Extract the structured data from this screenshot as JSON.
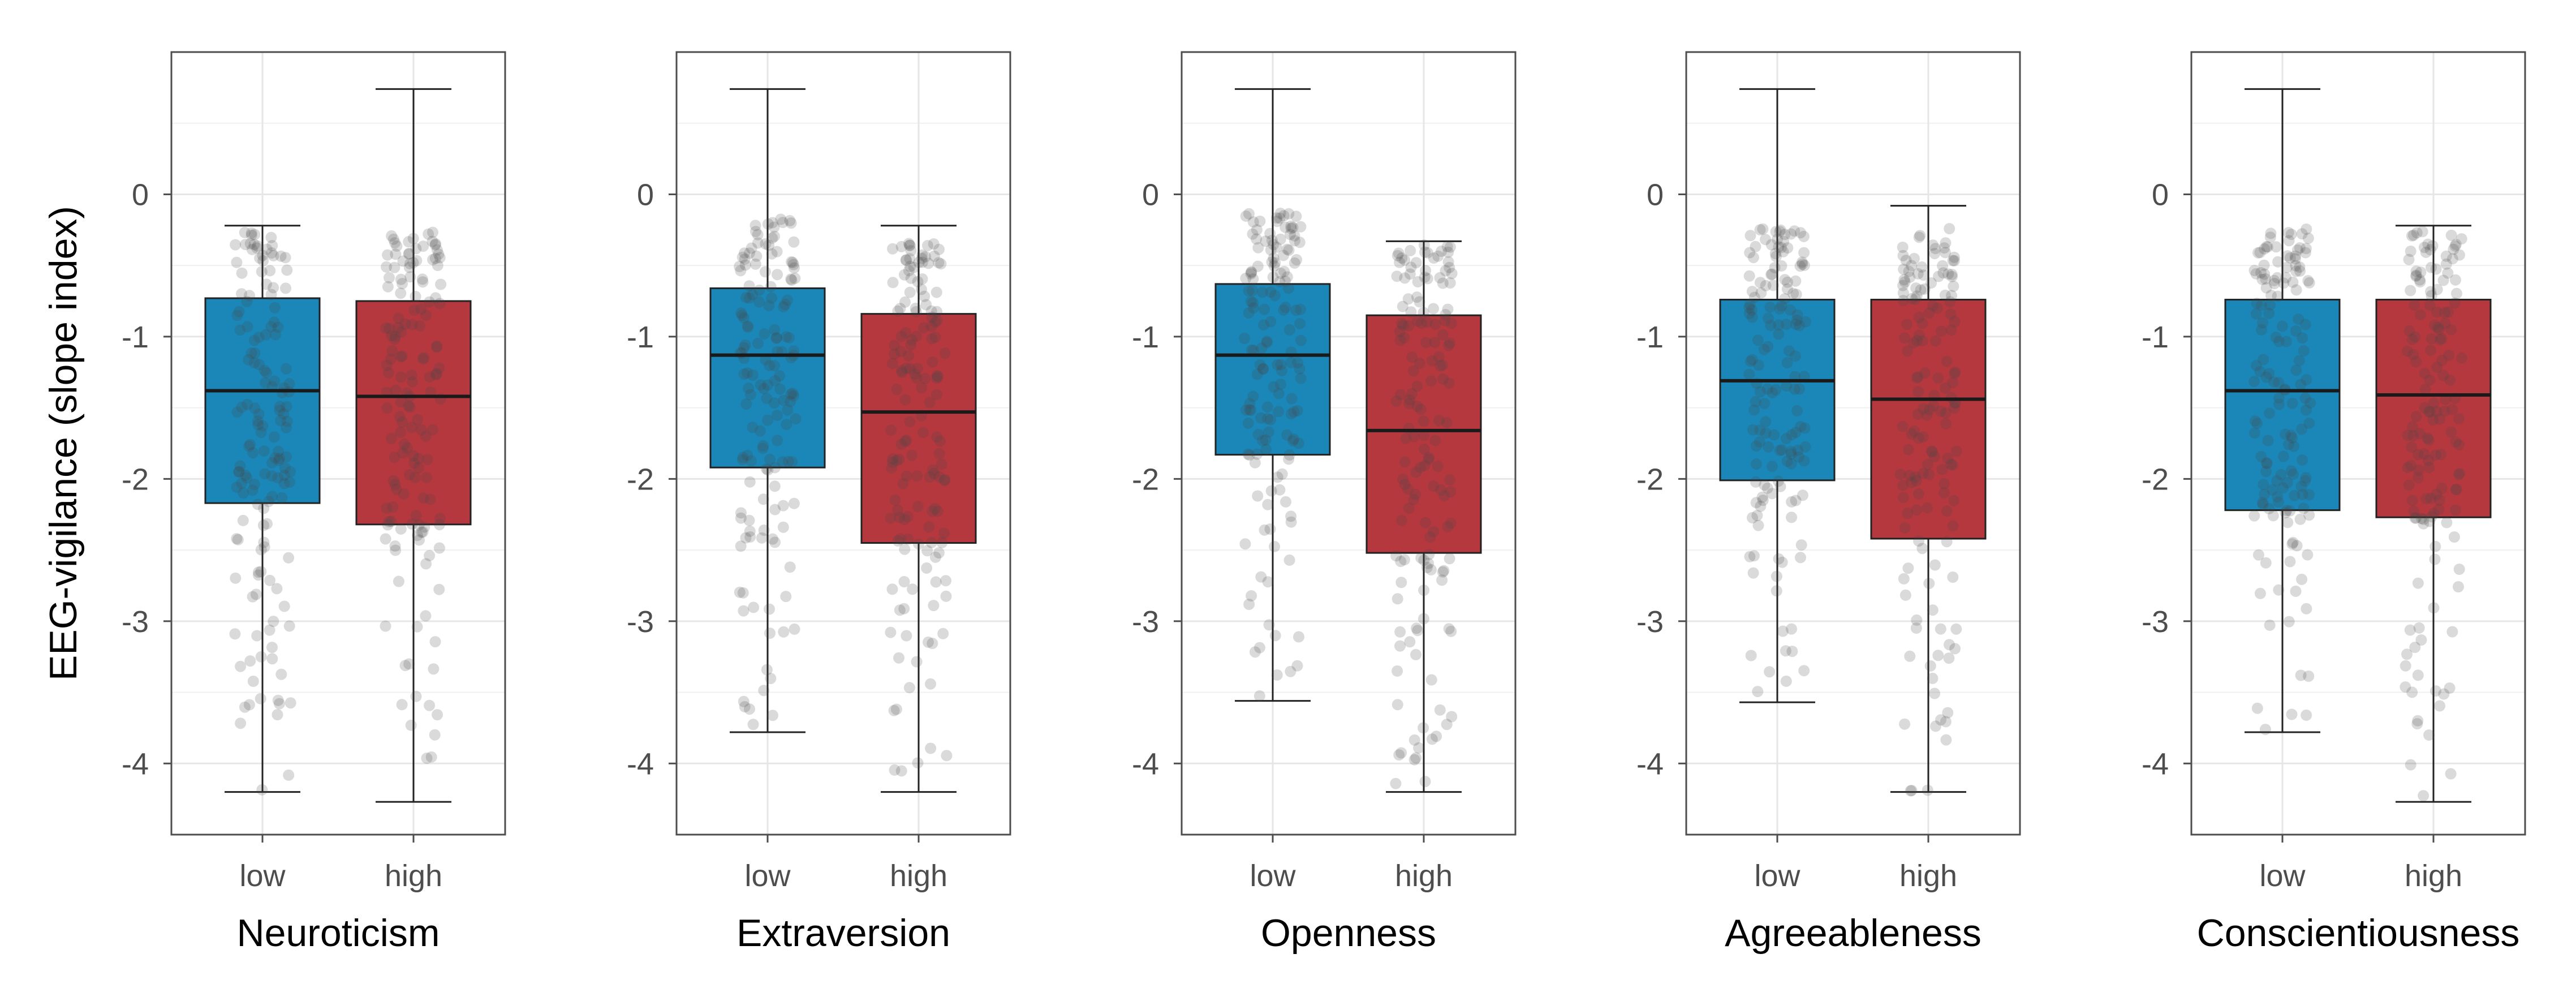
{
  "figure": {
    "y_axis_title": "EEG-vigilance (slope index)",
    "y_ticks": [
      0,
      -1,
      -2,
      -3,
      -4
    ],
    "ylim": [
      -4.5,
      1.0
    ],
    "whisker_range": [
      -4.27,
      0.74
    ],
    "colors": {
      "low": "#1b87b8",
      "high": "#b6383f",
      "box_outline": "#222222",
      "points": "#444444",
      "panel_border": "#4d4d4d",
      "grid": "#e6e6e6"
    }
  },
  "chart_data": [
    {
      "type": "boxplot",
      "xlabel": "Neuroticism",
      "ylabel": "EEG-vigilance (slope index)",
      "categories": [
        "low",
        "high"
      ],
      "ylim": [
        -4.5,
        1.0
      ],
      "series": [
        {
          "name": "low",
          "q1": -2.17,
          "median": -1.38,
          "q3": -0.73,
          "whisker_low": -4.2,
          "whisker_high": -0.22
        },
        {
          "name": "high",
          "q1": -2.32,
          "median": -1.42,
          "q3": -0.75,
          "whisker_low": -4.27,
          "whisker_high": 0.74
        }
      ]
    },
    {
      "type": "boxplot",
      "xlabel": "Extraversion",
      "ylabel": "EEG-vigilance (slope index)",
      "categories": [
        "low",
        "high"
      ],
      "ylim": [
        -4.5,
        1.0
      ],
      "series": [
        {
          "name": "low",
          "q1": -1.92,
          "median": -1.13,
          "q3": -0.66,
          "whisker_low": -3.78,
          "whisker_high": 0.74
        },
        {
          "name": "high",
          "q1": -2.45,
          "median": -1.53,
          "q3": -0.84,
          "whisker_low": -4.2,
          "whisker_high": -0.22
        }
      ]
    },
    {
      "type": "boxplot",
      "xlabel": "Openness",
      "ylabel": "EEG-vigilance (slope index)",
      "categories": [
        "low",
        "high"
      ],
      "ylim": [
        -4.5,
        1.0
      ],
      "series": [
        {
          "name": "low",
          "q1": -1.83,
          "median": -1.13,
          "q3": -0.63,
          "whisker_low": -3.56,
          "whisker_high": 0.74
        },
        {
          "name": "high",
          "q1": -2.52,
          "median": -1.66,
          "q3": -0.85,
          "whisker_low": -4.2,
          "whisker_high": -0.33
        }
      ]
    },
    {
      "type": "boxplot",
      "xlabel": "Agreeableness",
      "ylabel": "EEG-vigilance (slope index)",
      "categories": [
        "low",
        "high"
      ],
      "ylim": [
        -4.5,
        1.0
      ],
      "series": [
        {
          "name": "low",
          "q1": -2.01,
          "median": -1.31,
          "q3": -0.74,
          "whisker_low": -3.57,
          "whisker_high": 0.74
        },
        {
          "name": "high",
          "q1": -2.42,
          "median": -1.44,
          "q3": -0.74,
          "whisker_low": -4.2,
          "whisker_high": -0.08
        }
      ]
    },
    {
      "type": "boxplot",
      "xlabel": "Conscientiousness",
      "ylabel": "EEG-vigilance (slope index)",
      "categories": [
        "low",
        "high"
      ],
      "ylim": [
        -4.5,
        1.0
      ],
      "series": [
        {
          "name": "low",
          "q1": -2.22,
          "median": -1.38,
          "q3": -0.74,
          "whisker_low": -3.78,
          "whisker_high": 0.74
        },
        {
          "name": "high",
          "q1": -2.27,
          "median": -1.41,
          "q3": -0.74,
          "whisker_low": -4.27,
          "whisker_high": -0.22
        }
      ]
    }
  ]
}
